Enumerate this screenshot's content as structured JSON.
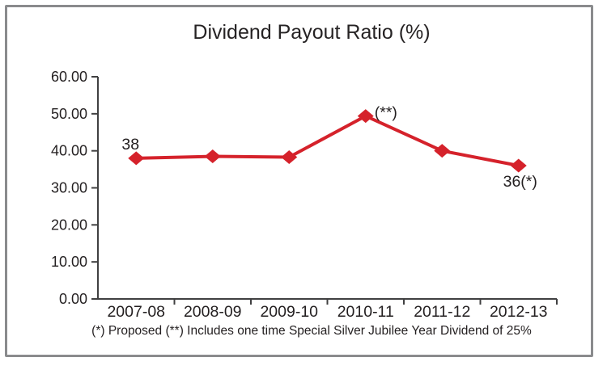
{
  "chart_data": {
    "type": "line",
    "title": "Dividend Payout Ratio (%)",
    "categories": [
      "2007-08",
      "2008-09",
      "2009-10",
      "2010-11",
      "2011-12",
      "2012-13"
    ],
    "series": [
      {
        "name": "Dividend Payout Ratio",
        "values": [
          38,
          38.5,
          38.3,
          49.4,
          40,
          36
        ],
        "color": "#d5222b",
        "marker": "diamond"
      }
    ],
    "point_labels": [
      "38",
      "",
      "",
      "(**)",
      "",
      "36(*)"
    ],
    "point_label_placement": [
      "above-left",
      "",
      "",
      "right",
      "",
      "below"
    ],
    "ylim": [
      0,
      60
    ],
    "ytick_step": 10,
    "ytick_labels": [
      "0.00",
      "10.00",
      "20.00",
      "30.00",
      "40.00",
      "50.00",
      "60.00"
    ],
    "xlabel": "",
    "ylabel": "",
    "grid": false,
    "legend": "none",
    "footnote": "(*) Proposed (**) Includes one time Special Silver Jubilee Year Dividend of 25%",
    "colors": {
      "line": "#d5222b",
      "axis": "#404041",
      "text": "#231f20",
      "frame_border": "#8a8b8d",
      "background": "#ffffff"
    }
  }
}
